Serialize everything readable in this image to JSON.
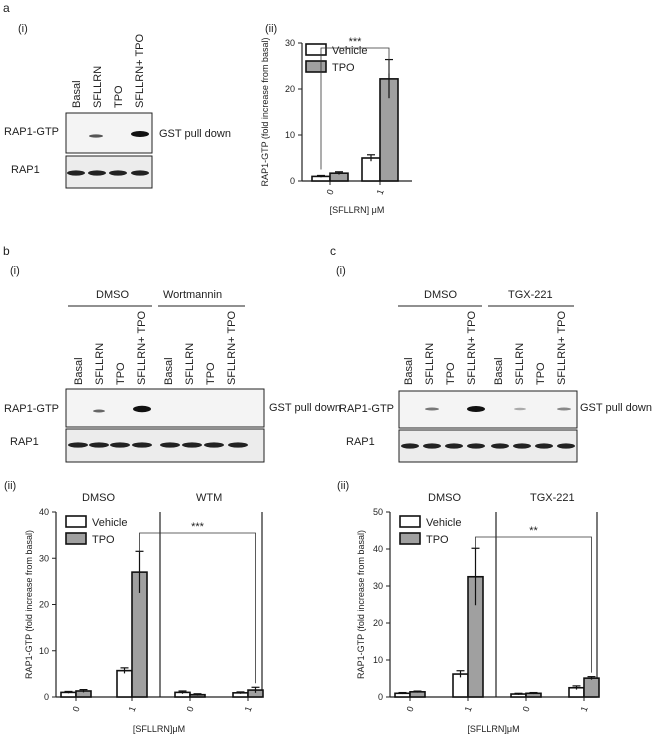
{
  "panels": {
    "a": {
      "letter": "a",
      "sub": "(i)",
      "sub2": "(ii)"
    },
    "b": {
      "letter": "b",
      "sub": "(i)",
      "sub2": "(ii)"
    },
    "c": {
      "letter": "c",
      "sub": "(i)",
      "sub2": "(ii)"
    }
  },
  "blot_a": {
    "lanes": [
      "Basal",
      "SFLLRN",
      "TPO",
      "SFLLRN+ TPO"
    ],
    "rows": [
      "RAP1-GTP",
      "RAP1"
    ],
    "side_label": "GST pull down"
  },
  "blot_b": {
    "groups": [
      "DMSO",
      "Wortmannin"
    ],
    "lanes": [
      "Basal",
      "SFLLRN",
      "TPO",
      "SFLLRN+ TPO",
      "Basal",
      "SFLLRN",
      "TPO",
      "SFLLRN+ TPO"
    ],
    "rows": [
      "RAP1-GTP",
      "RAP1"
    ],
    "side_label": "GST pull down"
  },
  "blot_c": {
    "groups": [
      "DMSO",
      "TGX-221"
    ],
    "lanes": [
      "Basal",
      "SFLLRN",
      "TPO",
      "SFLLRN+ TPO",
      "Basal",
      "SFLLRN",
      "TPO",
      "SFLLRN+ TPO"
    ],
    "rows": [
      "RAP1-GTP",
      "RAP1"
    ],
    "side_label": "GST pull down"
  },
  "chart_data": [
    {
      "id": "a-ii",
      "type": "bar",
      "ylabel": "RAP1-GTP (fold increase from basal)",
      "xlabel": "[SFLLRN] μM",
      "ylim": [
        0,
        30
      ],
      "yticks": [
        0,
        10,
        20,
        30
      ],
      "categories": [
        "0",
        "1"
      ],
      "series": [
        {
          "name": "Vehicle",
          "color": "#ffffff",
          "values": [
            1,
            5
          ],
          "errors": [
            0.2,
            0.7
          ]
        },
        {
          "name": "TPO",
          "color": "#a0a0a0",
          "values": [
            1.7,
            22.2
          ],
          "errors": [
            0.3,
            4.2
          ]
        }
      ],
      "significance": "***",
      "legend": "top-left"
    },
    {
      "id": "b-ii",
      "type": "bar",
      "ylabel": "RAP1-GTP (fold increase from basal)",
      "xlabel": "[SFLLRN]μM",
      "ylim": [
        0,
        40
      ],
      "yticks": [
        0,
        10,
        20,
        30,
        40
      ],
      "groups": [
        "DMSO",
        "WTM"
      ],
      "categories": [
        "0",
        "1",
        "0",
        "1"
      ],
      "series": [
        {
          "name": "Vehicle",
          "color": "#ffffff",
          "values": [
            1,
            5.7,
            1,
            0.9
          ],
          "errors": [
            0.2,
            0.6,
            0.3,
            0.2
          ]
        },
        {
          "name": "TPO",
          "color": "#a0a0a0",
          "values": [
            1.3,
            27,
            0.5,
            1.5
          ],
          "errors": [
            0.3,
            4.5,
            0.2,
            0.6
          ]
        }
      ],
      "significance": "***",
      "legend": "top-left"
    },
    {
      "id": "c-ii",
      "type": "bar",
      "ylabel": "RAP1-GTP (fold increase from basal)",
      "xlabel": "[SFLLRN]μM",
      "ylim": [
        0,
        50
      ],
      "yticks": [
        0,
        10,
        20,
        30,
        40,
        50
      ],
      "groups": [
        "DMSO",
        "TGX-221"
      ],
      "categories": [
        "0",
        "1",
        "0",
        "1"
      ],
      "series": [
        {
          "name": "Vehicle",
          "color": "#ffffff",
          "values": [
            1,
            6.2,
            0.8,
            2.5
          ],
          "errors": [
            0.2,
            0.9,
            0.2,
            0.5
          ]
        },
        {
          "name": "TPO",
          "color": "#a0a0a0",
          "values": [
            1.4,
            32.5,
            1,
            5.1
          ],
          "errors": [
            0.2,
            7.7,
            0.2,
            0.4
          ]
        }
      ],
      "significance": "**",
      "legend": "top-left"
    }
  ]
}
